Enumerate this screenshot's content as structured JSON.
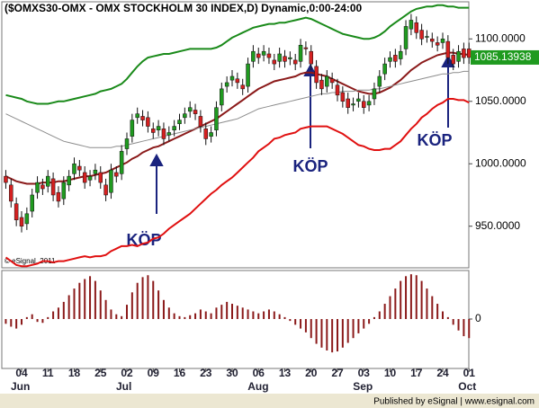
{
  "chart_data": {
    "type": "candlestick",
    "title": "($OMXS30-OMX - OMX STOCKHOLM 30 INDEX,D) Dynamic,0:00-24:00",
    "copyright": "© eSignal, 2011",
    "footer": "Published by eSignal | www.esignal.com",
    "annotations": [
      "KÖP",
      "KÖP",
      "KÖP"
    ],
    "categories": [
      null,
      null,
      null,
      "04",
      null,
      null,
      null,
      null,
      "11",
      null,
      null,
      null,
      null,
      "18",
      null,
      null,
      null,
      null,
      "25",
      null,
      null,
      null,
      null,
      "02",
      null,
      null,
      null,
      null,
      "09",
      null,
      null,
      null,
      null,
      "16",
      null,
      null,
      null,
      null,
      "23",
      null,
      null,
      null,
      null,
      "30",
      null,
      null,
      null,
      null,
      "06",
      null,
      null,
      null,
      null,
      "13",
      null,
      null,
      null,
      null,
      "20",
      null,
      null,
      null,
      null,
      "27",
      null,
      null,
      null,
      null,
      "03",
      null,
      null,
      null,
      null,
      "10",
      null,
      null,
      null,
      null,
      "17",
      null,
      null,
      null,
      null,
      "24",
      null,
      null,
      null,
      null,
      "01"
    ],
    "month_labels": [
      "Jun",
      "Jul",
      "Aug",
      "Sep",
      "Oct"
    ],
    "open": [
      990,
      983,
      968,
      957,
      952,
      962,
      977,
      983,
      982,
      988,
      977,
      972,
      983,
      992,
      998,
      993,
      987,
      992,
      993,
      983,
      977,
      993,
      992,
      1012,
      1022,
      1037,
      1038,
      1037,
      1028,
      1027,
      1028,
      1023,
      1027,
      1032,
      1037,
      1042,
      1043,
      1038,
      1028,
      1022,
      1027,
      1047,
      1062,
      1067,
      1068,
      1063,
      1062,
      1082,
      1088,
      1087,
      1088,
      1083,
      1082,
      1086,
      1084,
      1083,
      1082,
      1093,
      1090,
      1078,
      1067,
      1062,
      1068,
      1063,
      1057,
      1052,
      1047,
      1050,
      1050,
      1047,
      1052,
      1062,
      1072,
      1082,
      1087,
      1084,
      1092,
      1108,
      1113,
      1107,
      1102,
      1100,
      1097,
      1097,
      1098,
      1087,
      1082,
      1092,
      1092
    ],
    "high": [
      995,
      988,
      973,
      962,
      965,
      980,
      990,
      988,
      995,
      993,
      982,
      990,
      995,
      1005,
      1003,
      998,
      995,
      1000,
      998,
      988,
      1000,
      998,
      1015,
      1025,
      1040,
      1045,
      1043,
      1042,
      1033,
      1035,
      1033,
      1030,
      1035,
      1040,
      1045,
      1050,
      1048,
      1043,
      1033,
      1030,
      1050,
      1065,
      1070,
      1075,
      1073,
      1068,
      1085,
      1095,
      1093,
      1095,
      1093,
      1088,
      1093,
      1091,
      1090,
      1088,
      1100,
      1098,
      1095,
      1083,
      1072,
      1075,
      1073,
      1068,
      1062,
      1057,
      1053,
      1057,
      1055,
      1055,
      1065,
      1075,
      1085,
      1090,
      1092,
      1095,
      1115,
      1120,
      1118,
      1112,
      1107,
      1105,
      1102,
      1105,
      1103,
      1092,
      1095,
      1097,
      1097
    ],
    "low": [
      980,
      965,
      950,
      945,
      947,
      957,
      972,
      975,
      977,
      970,
      965,
      967,
      978,
      987,
      990,
      980,
      982,
      987,
      980,
      970,
      972,
      985,
      987,
      1007,
      1017,
      1032,
      1030,
      1025,
      1020,
      1022,
      1015,
      1018,
      1022,
      1027,
      1032,
      1037,
      1035,
      1025,
      1015,
      1017,
      1022,
      1042,
      1057,
      1062,
      1060,
      1055,
      1057,
      1077,
      1080,
      1082,
      1080,
      1075,
      1077,
      1077,
      1079,
      1075,
      1077,
      1087,
      1075,
      1060,
      1055,
      1057,
      1060,
      1050,
      1045,
      1040,
      1042,
      1045,
      1040,
      1042,
      1047,
      1057,
      1067,
      1077,
      1077,
      1079,
      1087,
      1103,
      1100,
      1095,
      1097,
      1093,
      1090,
      1092,
      1080,
      1075,
      1077,
      1080,
      1080
    ],
    "close": [
      985,
      970,
      955,
      950,
      960,
      975,
      985,
      980,
      990,
      975,
      970,
      985,
      990,
      1000,
      995,
      985,
      990,
      995,
      985,
      975,
      995,
      990,
      1010,
      1020,
      1035,
      1040,
      1035,
      1030,
      1025,
      1030,
      1020,
      1025,
      1030,
      1035,
      1040,
      1045,
      1040,
      1030,
      1020,
      1025,
      1045,
      1060,
      1065,
      1070,
      1065,
      1060,
      1080,
      1090,
      1085,
      1090,
      1085,
      1080,
      1088,
      1082,
      1085,
      1080,
      1095,
      1092,
      1080,
      1065,
      1060,
      1070,
      1065,
      1055,
      1050,
      1045,
      1048,
      1052,
      1045,
      1050,
      1060,
      1070,
      1080,
      1085,
      1082,
      1090,
      1110,
      1115,
      1105,
      1100,
      1102,
      1098,
      1095,
      1100,
      1085,
      1080,
      1090,
      1085,
      1085.13938
    ],
    "up_color": "#1f9a1f",
    "down_color": "#d42020",
    "bands": [
      {
        "color": "#1a8a1a",
        "values": [
          1055,
          1054,
          1053,
          1052,
          1050,
          1049,
          1048,
          1048,
          1048,
          1049,
          1050,
          1050,
          1051,
          1052,
          1053,
          1054,
          1055,
          1056,
          1058,
          1059,
          1060,
          1062,
          1064,
          1068,
          1073,
          1078,
          1082,
          1085,
          1086,
          1087,
          1088,
          1088,
          1089,
          1090,
          1091,
          1092,
          1092,
          1092,
          1092,
          1092,
          1093,
          1095,
          1098,
          1101,
          1103,
          1105,
          1107,
          1109,
          1110,
          1111,
          1112,
          1112,
          1113,
          1113,
          1114,
          1115,
          1116,
          1117,
          1116,
          1114,
          1112,
          1110,
          1108,
          1106,
          1104,
          1103,
          1102,
          1101,
          1100,
          1100,
          1101,
          1103,
          1106,
          1110,
          1113,
          1116,
          1119,
          1122,
          1124,
          1125,
          1126,
          1126,
          1127,
          1127,
          1126,
          1126,
          1125,
          1125,
          1125
        ]
      },
      {
        "color": "#8b1a1a",
        "values": [
          990,
          988,
          986,
          985,
          984,
          984,
          984,
          985,
          985,
          985,
          986,
          986,
          987,
          988,
          989,
          990,
          990,
          991,
          992,
          993,
          995,
          997,
          999,
          1001,
          1004,
          1006,
          1009,
          1011,
          1013,
          1014,
          1016,
          1018,
          1020,
          1022,
          1024,
          1026,
          1028,
          1030,
          1032,
          1034,
          1036,
          1039,
          1042,
          1045,
          1048,
          1051,
          1054,
          1057,
          1060,
          1062,
          1064,
          1066,
          1067,
          1068,
          1069,
          1070,
          1072,
          1073,
          1073,
          1072,
          1071,
          1070,
          1068,
          1066,
          1064,
          1062,
          1060,
          1058,
          1057,
          1056,
          1056,
          1057,
          1059,
          1061,
          1064,
          1067,
          1071,
          1075,
          1078,
          1081,
          1083,
          1085,
          1087,
          1088,
          1089,
          1089,
          1088,
          1088,
          1087
        ]
      },
      {
        "color": "#e01010",
        "values": [
          925,
          922,
          919,
          918,
          918,
          919,
          920,
          922,
          922,
          921,
          922,
          922,
          923,
          924,
          925,
          926,
          925,
          926,
          926,
          927,
          930,
          932,
          934,
          934,
          935,
          934,
          936,
          937,
          940,
          941,
          944,
          948,
          951,
          954,
          957,
          960,
          964,
          968,
          972,
          976,
          979,
          983,
          986,
          989,
          993,
          997,
          1001,
          1005,
          1010,
          1013,
          1016,
          1020,
          1021,
          1023,
          1024,
          1025,
          1028,
          1029,
          1030,
          1030,
          1030,
          1030,
          1028,
          1026,
          1024,
          1021,
          1018,
          1015,
          1014,
          1012,
          1011,
          1011,
          1012,
          1012,
          1015,
          1018,
          1023,
          1028,
          1032,
          1037,
          1040,
          1044,
          1047,
          1049,
          1052,
          1052,
          1051,
          1051,
          1049
        ]
      },
      {
        "color": "#8c8c8c",
        "values": [
          1040,
          1038,
          1036,
          1034,
          1032,
          1030,
          1028,
          1026,
          1024,
          1022,
          1020,
          1018,
          1017,
          1016,
          1015,
          1014,
          1013,
          1013,
          1013,
          1013,
          1013,
          1014,
          1014,
          1015,
          1016,
          1017,
          1018,
          1019,
          1020,
          1021,
          1022,
          1023,
          1024,
          1025,
          1026,
          1027,
          1028,
          1029,
          1030,
          1031,
          1032,
          1033,
          1034,
          1035,
          1036,
          1038,
          1040,
          1042,
          1044,
          1045,
          1046,
          1047,
          1048,
          1049,
          1050,
          1051,
          1052,
          1053,
          1054,
          1055,
          1056,
          1056,
          1057,
          1057,
          1058,
          1058,
          1058,
          1059,
          1059,
          1059,
          1060,
          1060,
          1061,
          1062,
          1063,
          1064,
          1065,
          1066,
          1067,
          1068,
          1069,
          1070,
          1071,
          1072,
          1072,
          1073,
          1073,
          1074,
          1074
        ]
      }
    ],
    "ylim": [
      917.4,
      1129
    ],
    "yticks": [
      {
        "value": 950,
        "label": "950.0000"
      },
      {
        "value": 1000,
        "label": "1000.0000"
      },
      {
        "value": 1050,
        "label": "1050.0000"
      },
      {
        "value": 1100,
        "label": "1100.0000"
      }
    ],
    "last_color": "#1f9a1f",
    "oscillator": {
      "type": "bar",
      "color": "#8b1a1a",
      "values": [
        -5,
        -8,
        -10,
        -6,
        2,
        5,
        -3,
        -4,
        2,
        8,
        12,
        18,
        25,
        32,
        38,
        42,
        45,
        40,
        30,
        20,
        10,
        5,
        3,
        15,
        28,
        38,
        44,
        46,
        40,
        30,
        20,
        12,
        6,
        3,
        2,
        4,
        6,
        10,
        8,
        6,
        12,
        15,
        18,
        16,
        14,
        12,
        10,
        8,
        6,
        8,
        10,
        8,
        5,
        2,
        -2,
        -6,
        -10,
        -14,
        -20,
        -26,
        -30,
        -33,
        -35,
        -34,
        -30,
        -25,
        -20,
        -15,
        -10,
        -5,
        2,
        8,
        16,
        24,
        32,
        40,
        45,
        47,
        46,
        40,
        32,
        24,
        16,
        8,
        2,
        -6,
        -12,
        -18,
        -20
      ],
      "ylim": [
        -50,
        50
      ],
      "yticks": [
        0
      ]
    }
  }
}
